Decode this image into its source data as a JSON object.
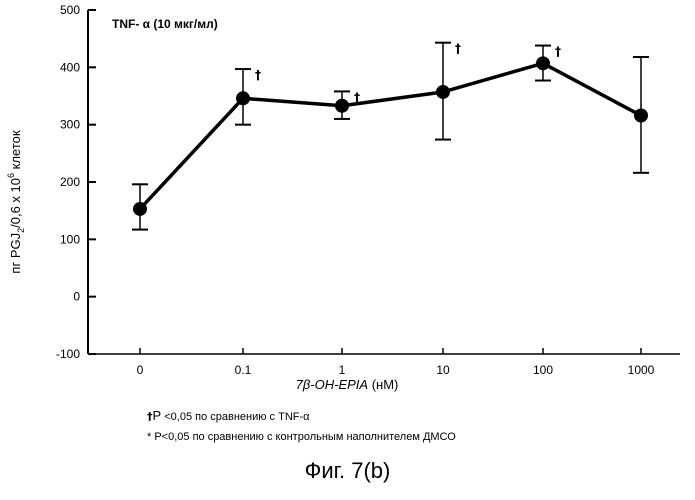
{
  "chart_data": {
    "type": "line",
    "annotation": "TNF- α (10 мкг/мл)",
    "xlabel": "7β-OH-EPIA",
    "xlabel_unit": "(нМ)",
    "ylabel_parts": [
      "пг PGJ",
      "2",
      "/0,6 x 10",
      "6",
      " клеток"
    ],
    "categories": [
      "0",
      "0.1",
      "1",
      "10",
      "100",
      "1000"
    ],
    "values": [
      153,
      346,
      333,
      357,
      407,
      316
    ],
    "error_low": [
      117,
      300,
      310,
      274,
      377,
      216
    ],
    "error_high": [
      196,
      397,
      358,
      443,
      438,
      418
    ],
    "significance_marks": [
      "",
      "†",
      "†",
      "†",
      "†",
      ""
    ],
    "ylim": [
      -100,
      500
    ],
    "yticks": [
      -100,
      0,
      100,
      200,
      300,
      400,
      500
    ],
    "grid": false,
    "line_color": "#000000"
  },
  "footnotes": {
    "line1_mark": "†",
    "line1_p": "P",
    "line1_text": " <0,05 по сравнению с  TNF-α",
    "line2_text": "* P<0,05 по сравнению с контрольным наполнителем ДМСО"
  },
  "caption": "Фиг. 7(b)"
}
